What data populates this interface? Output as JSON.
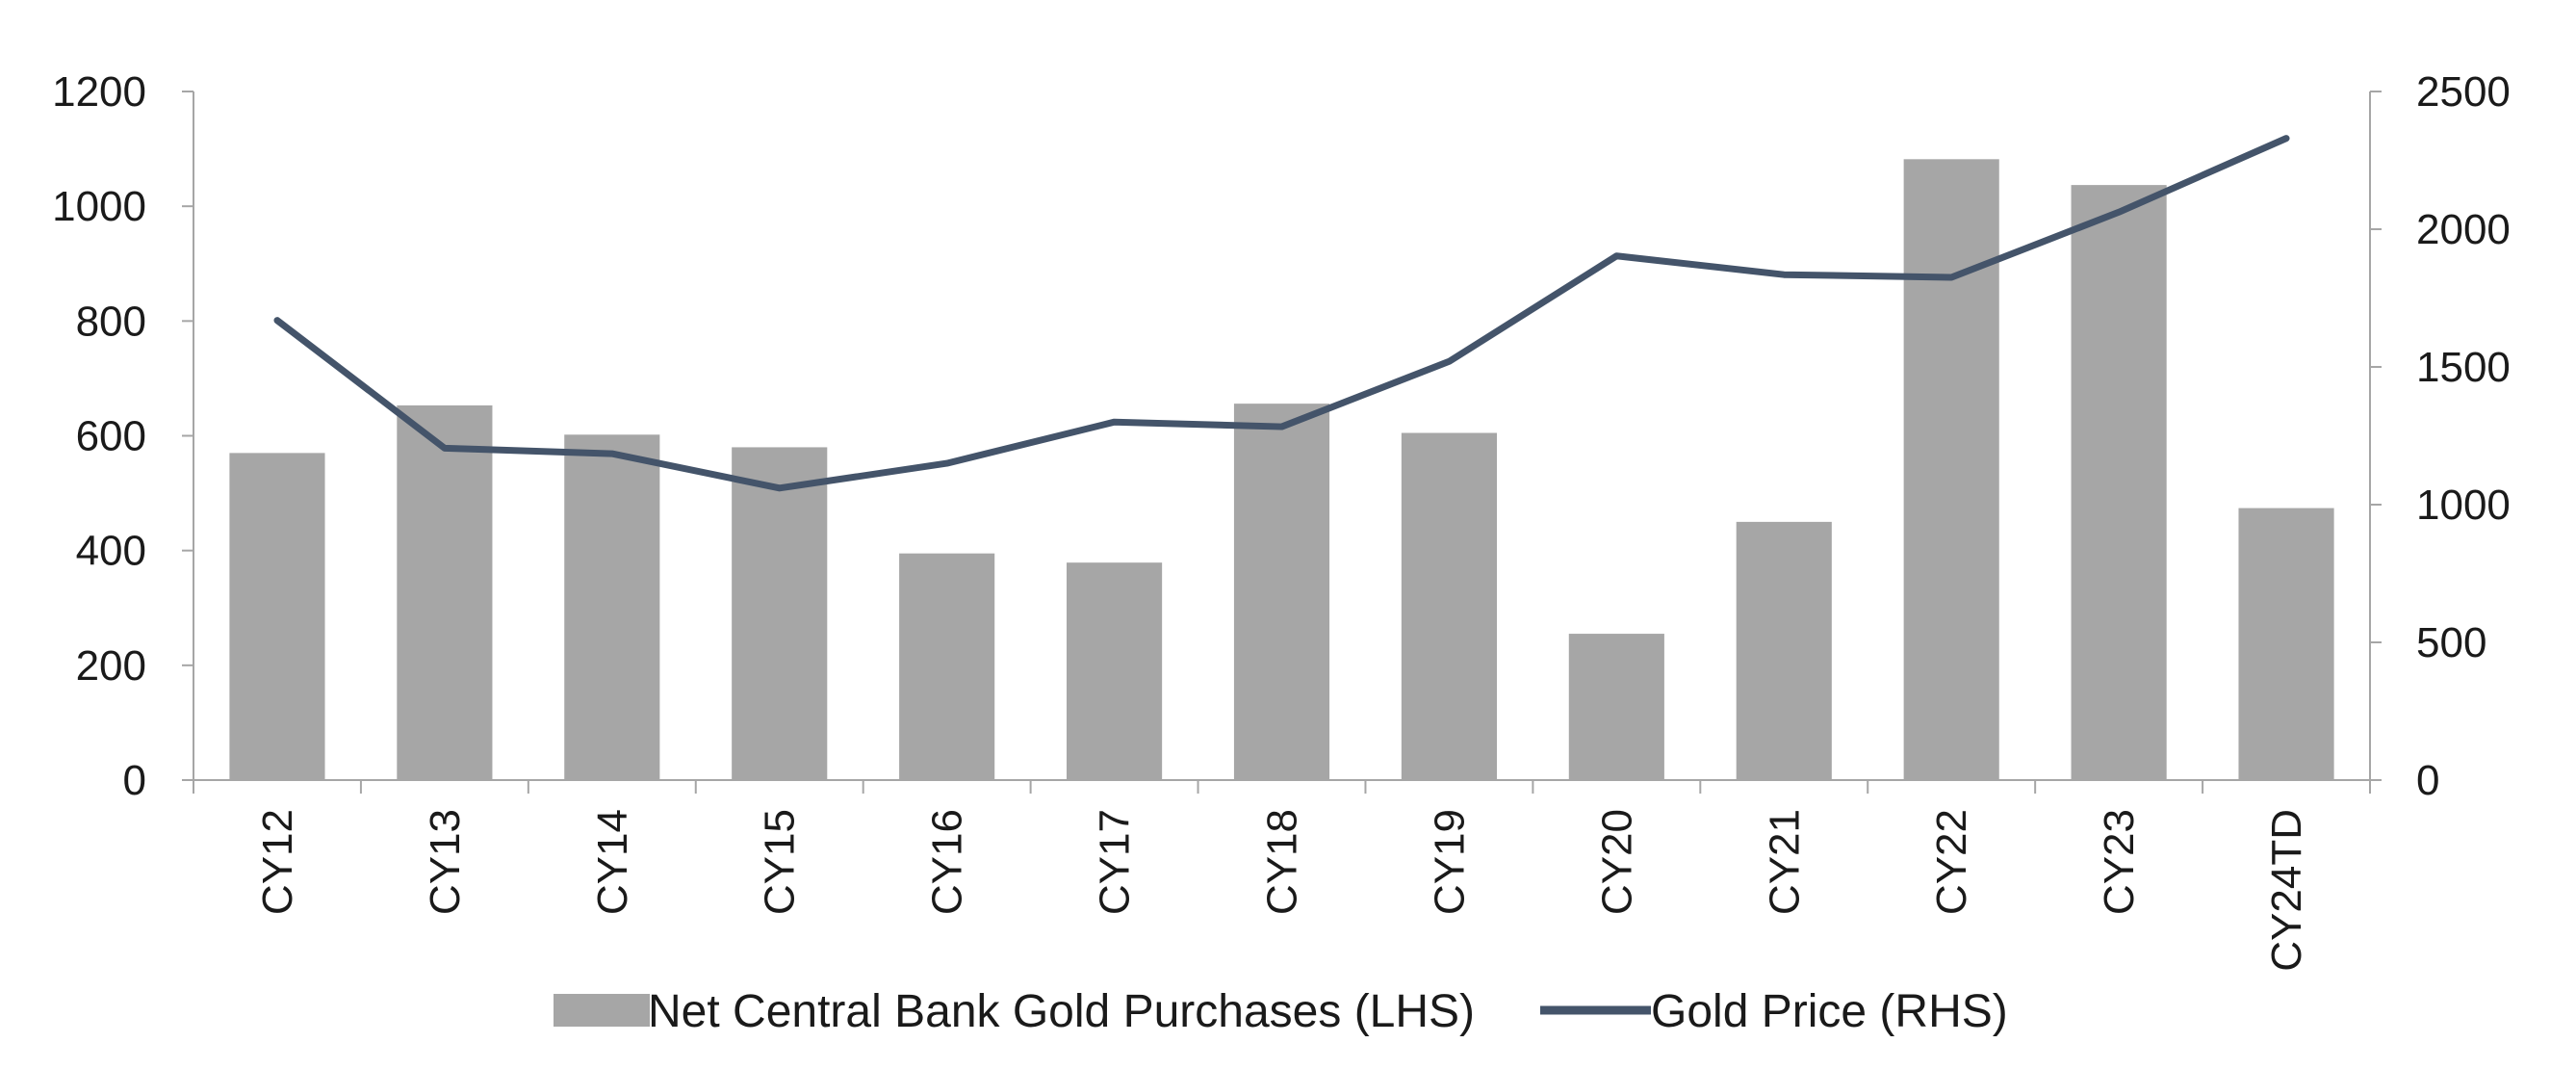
{
  "chart_data": {
    "type": "bar+line",
    "title": "",
    "xlabel": "",
    "ylabel_left": "",
    "ylabel_right": "",
    "categories": [
      "CY12",
      "CY13",
      "CY14",
      "CY15",
      "CY16",
      "CY17",
      "CY18",
      "CY19",
      "CY20",
      "CY21",
      "CY22",
      "CY23",
      "CY24TD"
    ],
    "y_left": {
      "min": 0,
      "max": 1200,
      "ticks": [
        0,
        200,
        400,
        600,
        800,
        1000,
        1200
      ]
    },
    "y_right": {
      "min": 0,
      "max": 2500,
      "ticks": [
        0,
        500,
        1000,
        1500,
        2000,
        2500
      ]
    },
    "grid": false,
    "legend_position": "bottom",
    "series": [
      {
        "name": "Net Central Bank Gold Purchases (LHS)",
        "type": "bar",
        "axis": "left",
        "color": "#a6a6a6",
        "values": [
          570,
          653,
          602,
          580,
          395,
          379,
          656,
          605,
          255,
          450,
          1082,
          1037,
          474
        ]
      },
      {
        "name": "Gold Price (RHS)",
        "type": "line",
        "axis": "right",
        "color": "#44546a",
        "values": [
          1669,
          1205,
          1185,
          1060,
          1150,
          1300,
          1283,
          1520,
          1903,
          1835,
          1825,
          2062,
          2330
        ]
      }
    ]
  }
}
